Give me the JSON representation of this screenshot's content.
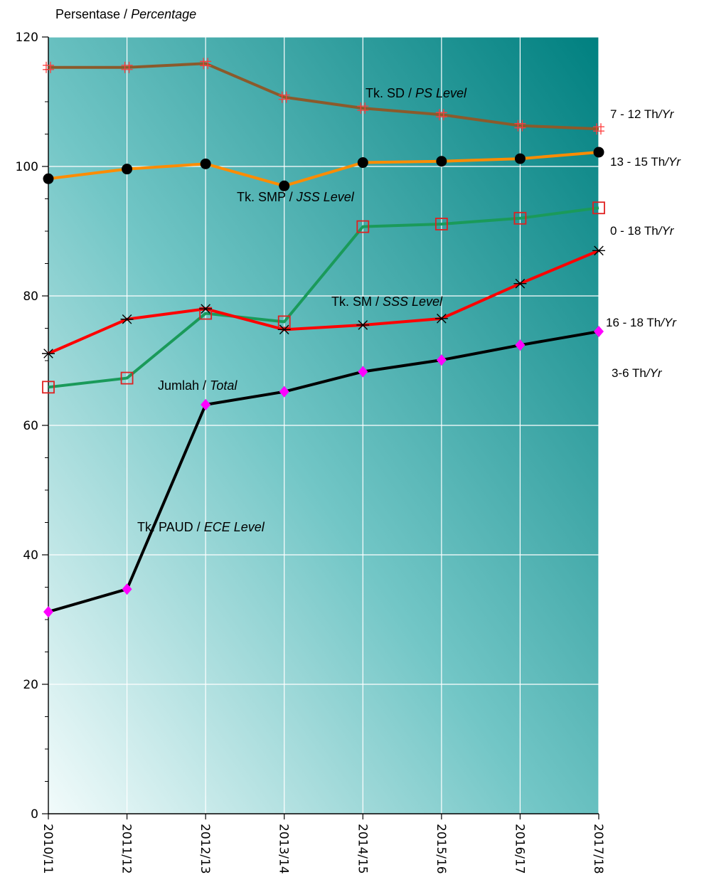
{
  "chart_data": {
    "type": "line",
    "title_main": "Persentase / ",
    "title_italic": "Percentage",
    "categories": [
      "2010/11",
      "2011/12",
      "2012/13",
      "2013/14",
      "2014/15",
      "2015/16",
      "2016/17",
      "2017/18"
    ],
    "ylim": [
      0,
      120
    ],
    "yticks": [
      0,
      20,
      40,
      60,
      80,
      100,
      120
    ],
    "grid": true,
    "series": [
      {
        "label_main": "Tk. SD / ",
        "label_italic": "PS Level",
        "age_main": "7 - 12 Th",
        "age_italic": "/Yr",
        "values": [
          115.3,
          115.3,
          115.9,
          110.7,
          109.0,
          108.0,
          106.3,
          105.8
        ],
        "color": "#8b5a2b",
        "marker": "hash",
        "marker_color": "#ff3b3b"
      },
      {
        "label_main": "Tk. SMP / ",
        "label_italic": "JSS Level",
        "age_main": "13 - 15 Th",
        "age_italic": "/Yr",
        "values": [
          98.1,
          99.6,
          100.4,
          97.0,
          100.6,
          100.8,
          101.2,
          102.2
        ],
        "color": "#ff8c00",
        "marker": "circle",
        "marker_color": "#000000"
      },
      {
        "label_main": "Jumlah / ",
        "label_italic": "Total",
        "age_main": "0 - 18 Th",
        "age_italic": "/Yr",
        "values": [
          65.9,
          67.3,
          77.3,
          76.0,
          90.7,
          91.1,
          92.0,
          93.6
        ],
        "color": "#1a9a5a",
        "marker": "square",
        "marker_color": "#e02020"
      },
      {
        "label_main": "Tk. SM / ",
        "label_italic": "SSS Level",
        "age_main": "16 - 18 Th",
        "age_italic": "/Yr",
        "values": [
          71.1,
          76.4,
          78.0,
          74.8,
          75.5,
          76.5,
          81.9,
          87.0
        ],
        "color": "#ff0000",
        "marker": "star",
        "marker_color": "#000000"
      },
      {
        "label_main": "Tk. PAUD / ",
        "label_italic": "ECE Level",
        "age_main": "3-6 Th",
        "age_italic": "/Yr",
        "values": [
          31.2,
          34.7,
          63.2,
          65.2,
          68.3,
          70.1,
          72.4,
          74.5
        ],
        "color": "#000000",
        "marker": "diamond",
        "marker_color": "#ff00ff"
      }
    ]
  }
}
